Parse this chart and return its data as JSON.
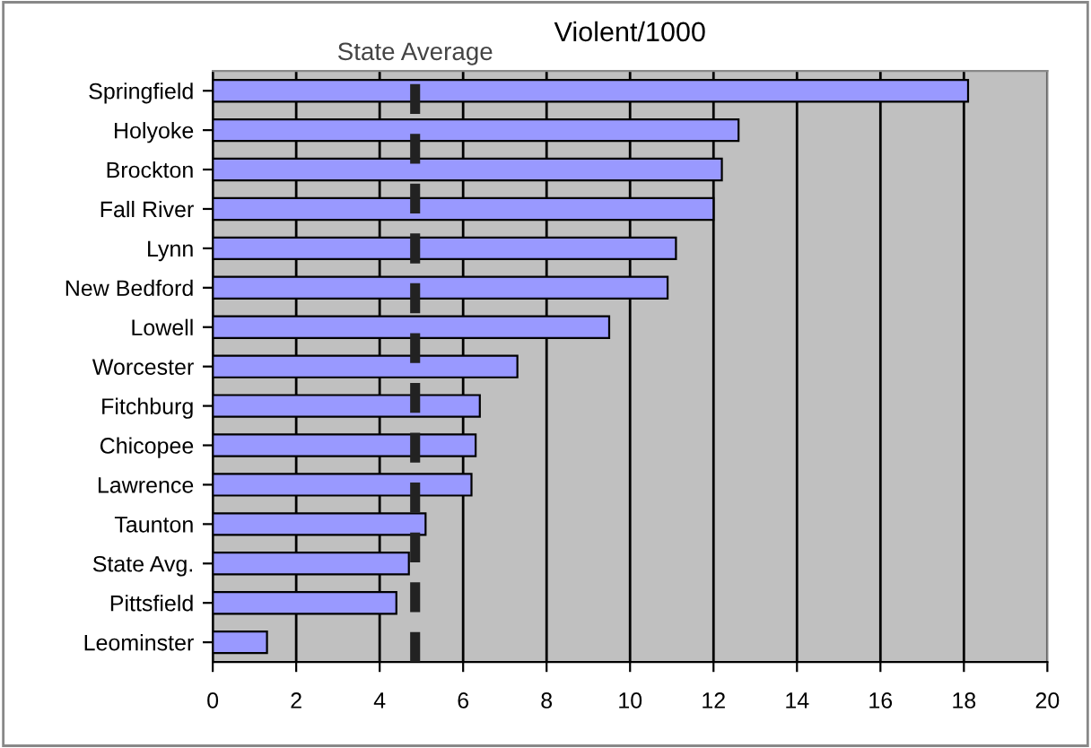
{
  "chart_data": {
    "type": "bar",
    "orientation": "horizontal",
    "title": "Violent/1000",
    "categories": [
      "Springfield",
      "Holyoke",
      "Brockton",
      "Fall River",
      "Lynn",
      "New Bedford",
      "Lowell",
      "Worcester",
      "Fitchburg",
      "Chicopee",
      "Lawrence",
      "Taunton",
      "State Avg.",
      "Pittsfield",
      "Leominster"
    ],
    "values": [
      18.1,
      12.6,
      12.2,
      12.0,
      11.1,
      10.9,
      9.5,
      7.3,
      6.4,
      6.3,
      6.2,
      5.1,
      4.7,
      4.4,
      1.3
    ],
    "color": "#9999ff",
    "xlim": [
      0,
      20
    ],
    "xticks": [
      0,
      2,
      4,
      6,
      8,
      10,
      12,
      14,
      16,
      18,
      20
    ],
    "grid": "x",
    "ref_lines": [
      {
        "axis": "x",
        "value": 4.85,
        "label": "State Average",
        "color": "#222222",
        "line_style": "dashed"
      }
    ]
  }
}
